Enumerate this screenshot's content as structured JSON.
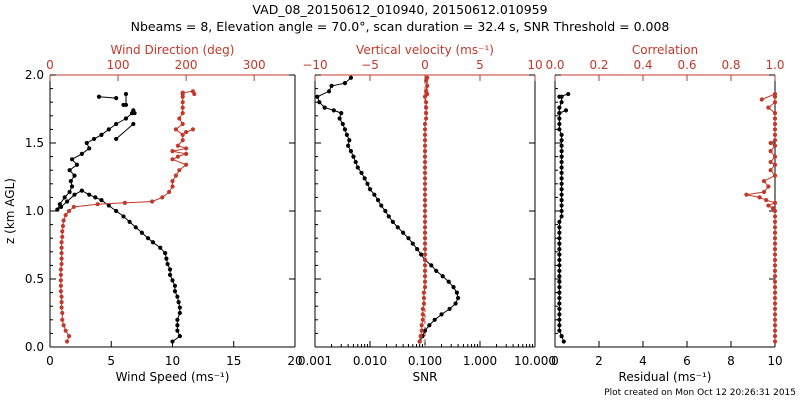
{
  "header": {
    "title": "VAD_08_20150612_010940, 20150612.010959",
    "subtitle": "Nbeams = 8, Elevation angle = 70.0°, scan duration = 32.4 s, SNR Threshold = 0.008"
  },
  "footer": {
    "note": "Plot created on Mon Oct 12 20:26:31 2015"
  },
  "chart_data": [
    {
      "type": "line",
      "panel": "left",
      "ylabel": "z (km AGL)",
      "ylim": [
        0.0,
        2.0
      ],
      "yticks": [
        "0.0",
        "0.5",
        "1.0",
        "1.5",
        "2.0"
      ],
      "bottom_axis": {
        "label": "Wind Speed (ms⁻¹)",
        "range": [
          0,
          20
        ],
        "ticks": [
          "0",
          "5",
          "10",
          "15",
          "20"
        ],
        "color": "#000000"
      },
      "top_axis": {
        "label": "Wind Direction (deg)",
        "range": [
          0,
          360
        ],
        "ticks": [
          "0",
          "100",
          "200",
          "300"
        ],
        "color": "#c0392b"
      },
      "series": [
        {
          "axis": "bottom",
          "color": "#000000",
          "x": [
            10.0,
            10.6,
            10.4,
            10.4,
            10.4,
            10.6,
            10.6,
            10.5,
            10.4,
            10.2,
            10.2,
            10.0,
            9.8,
            9.8,
            9.6,
            9.5,
            9.4,
            9.0,
            8.4,
            8.0,
            7.5,
            7.0,
            6.5,
            6.0,
            5.4,
            4.8,
            4.2,
            3.7,
            3.2,
            2.6,
            2.0,
            1.4,
            0.9,
            0.6,
            0.8,
            1.2,
            1.6,
            1.8,
            1.7,
            2.0,
            1.6,
            2.2,
            1.8,
            2.6,
            3.2,
            3.0,
            3.6,
            4.2,
            4.8,
            5.4,
            6.2,
            6.7,
            6.9,
            6.8,
            null,
            5.4,
            6.8,
            null,
            6.0,
            6.2,
            6.2,
            null,
            4.0,
            5.4
          ],
          "y": [
            0.04,
            0.08,
            0.12,
            0.16,
            0.2,
            0.25,
            0.29,
            0.33,
            0.37,
            0.41,
            0.45,
            0.49,
            0.53,
            0.57,
            0.61,
            0.65,
            0.69,
            0.73,
            0.77,
            0.8,
            0.84,
            0.88,
            0.92,
            0.96,
            1.0,
            1.04,
            1.08,
            1.1,
            1.12,
            1.15,
            1.12,
            1.07,
            1.03,
            1.01,
            1.05,
            1.1,
            1.14,
            1.18,
            1.22,
            1.26,
            1.3,
            1.34,
            1.38,
            1.42,
            1.46,
            1.5,
            1.53,
            1.56,
            1.6,
            1.64,
            1.68,
            1.72,
            1.72,
            1.74,
            null,
            1.53,
            1.64,
            null,
            1.78,
            1.78,
            1.86,
            null,
            1.84,
            1.83
          ]
        },
        {
          "axis": "top",
          "color": "#c0392b",
          "x": [
            25,
            28,
            23,
            20,
            18,
            18,
            17,
            17,
            17,
            16,
            16,
            16,
            16,
            16,
            17,
            17,
            17,
            17,
            17,
            18,
            18,
            19,
            20,
            23,
            28,
            35,
            70,
            110,
            150,
            165,
            175,
            180,
            180,
            185,
            190,
            200,
            180,
            188,
            200,
            180,
            200,
            188,
            195,
            195,
            185,
            195,
            190,
            195,
            195,
            195,
            195,
            195,
            195,
            210,
            212,
            null,
            200,
            210
          ],
          "y": [
            0.04,
            0.08,
            0.12,
            0.16,
            0.2,
            0.25,
            0.29,
            0.33,
            0.37,
            0.41,
            0.45,
            0.49,
            0.53,
            0.57,
            0.61,
            0.65,
            0.69,
            0.73,
            0.77,
            0.81,
            0.85,
            0.89,
            0.93,
            0.97,
            1.0,
            1.03,
            1.05,
            1.06,
            1.07,
            1.1,
            1.14,
            1.18,
            1.22,
            1.26,
            1.3,
            1.34,
            1.38,
            1.4,
            1.42,
            1.44,
            1.46,
            1.48,
            1.52,
            1.56,
            1.6,
            1.64,
            1.68,
            1.72,
            1.76,
            1.8,
            1.84,
            1.86,
            1.87,
            1.88,
            1.86,
            null,
            1.58,
            1.6
          ]
        }
      ]
    },
    {
      "type": "line",
      "panel": "middle",
      "bottom_axis": {
        "label": "SNR",
        "scale": "log",
        "range": [
          0.001,
          10
        ],
        "ticks": [
          "0.001",
          "0.010",
          "0.100",
          "1.000",
          "10.000"
        ],
        "color": "#000000"
      },
      "top_axis": {
        "label": "Vertical velocity (ms⁻¹)",
        "range": [
          -10,
          10
        ],
        "ticks": [
          "−10",
          "−5",
          "0",
          "5",
          "10"
        ],
        "color": "#c0392b",
        "zero_line": true
      },
      "ylim": [
        0.0,
        2.0
      ],
      "series": [
        {
          "axis": "bottom",
          "color": "#000000",
          "x": [
            0.08,
            0.09,
            0.1,
            0.12,
            0.15,
            0.2,
            0.28,
            0.36,
            0.4,
            0.38,
            0.33,
            0.27,
            0.21,
            0.16,
            0.13,
            0.1,
            0.085,
            0.072,
            0.06,
            0.05,
            0.04,
            0.032,
            0.026,
            0.022,
            0.019,
            0.016,
            0.014,
            0.012,
            0.01,
            0.009,
            0.008,
            0.007,
            0.006,
            0.0055,
            0.005,
            0.0045,
            0.004,
            0.0042,
            0.0038,
            0.0035,
            0.0032,
            0.0028,
            0.003,
            0.0022,
            0.0015,
            0.0012,
            0.0011,
            0.0018,
            0.002,
            0.0035,
            0.0045
          ],
          "y": [
            0.04,
            0.08,
            0.12,
            0.16,
            0.2,
            0.24,
            0.28,
            0.32,
            0.36,
            0.4,
            0.44,
            0.48,
            0.52,
            0.56,
            0.6,
            0.64,
            0.68,
            0.72,
            0.76,
            0.8,
            0.84,
            0.88,
            0.92,
            0.96,
            1.0,
            1.04,
            1.08,
            1.12,
            1.16,
            1.2,
            1.24,
            1.28,
            1.32,
            1.36,
            1.4,
            1.44,
            1.48,
            1.52,
            1.56,
            1.6,
            1.64,
            1.68,
            1.72,
            1.74,
            1.76,
            1.8,
            1.84,
            1.88,
            1.92,
            1.94,
            1.98
          ]
        },
        {
          "axis": "top",
          "color": "#c0392b",
          "x": [
            -0.5,
            -0.4,
            -0.3,
            -0.3,
            -0.2,
            -0.2,
            -0.2,
            -0.1,
            -0.1,
            -0.1,
            0,
            0,
            0,
            0,
            0,
            0,
            0,
            0,
            0,
            0,
            0,
            0,
            0,
            0,
            0,
            0,
            0,
            0,
            0,
            0,
            0,
            0,
            0,
            0,
            0,
            0,
            0,
            0,
            0,
            0,
            0,
            0.1,
            0.1,
            0.1,
            0.1,
            0,
            0.1,
            0.2,
            0.1,
            0.2,
            0.2
          ],
          "y": [
            0.04,
            0.08,
            0.12,
            0.16,
            0.2,
            0.24,
            0.28,
            0.32,
            0.36,
            0.4,
            0.44,
            0.48,
            0.52,
            0.56,
            0.6,
            0.64,
            0.68,
            0.72,
            0.76,
            0.8,
            0.84,
            0.88,
            0.92,
            0.96,
            1.0,
            1.04,
            1.08,
            1.12,
            1.16,
            1.2,
            1.24,
            1.28,
            1.32,
            1.36,
            1.4,
            1.44,
            1.48,
            1.52,
            1.56,
            1.6,
            1.64,
            1.68,
            1.72,
            1.76,
            1.8,
            1.84,
            1.88,
            1.92,
            1.96,
            1.98,
            1.86
          ]
        }
      ]
    },
    {
      "type": "line",
      "panel": "right",
      "bottom_axis": {
        "label": "Residual (ms⁻¹)",
        "range": [
          0,
          10
        ],
        "ticks": [
          "0",
          "2",
          "4",
          "6",
          "8",
          "10"
        ],
        "color": "#000000"
      },
      "top_axis": {
        "label": "Correlation",
        "range": [
          0.0,
          1.0
        ],
        "ticks": [
          "0.0",
          "0.2",
          "0.4",
          "0.6",
          "0.8",
          "1.0"
        ],
        "color": "#c0392b"
      },
      "ylim": [
        0.0,
        2.0
      ],
      "series": [
        {
          "axis": "bottom",
          "color": "#000000",
          "x": [
            0.4,
            0.3,
            0.2,
            0.2,
            0.2,
            0.2,
            0.2,
            0.2,
            0.2,
            0.2,
            0.2,
            0.2,
            0.2,
            0.2,
            0.2,
            0.2,
            0.2,
            0.2,
            0.2,
            0.2,
            0.2,
            0.2,
            0.2,
            0.3,
            0.3,
            0.3,
            0.3,
            0.3,
            0.3,
            0.3,
            0.3,
            0.3,
            0.3,
            0.3,
            0.3,
            0.3,
            0.3,
            0.3,
            0.3,
            0.2,
            0.2,
            0.2,
            0.2,
            0.2,
            0.3,
            0.3,
            null,
            0.5,
            0.2,
            null,
            0.6,
            0.2
          ],
          "y": [
            0.04,
            0.08,
            0.12,
            0.16,
            0.2,
            0.24,
            0.28,
            0.32,
            0.36,
            0.4,
            0.44,
            0.48,
            0.52,
            0.56,
            0.6,
            0.64,
            0.68,
            0.72,
            0.76,
            0.8,
            0.84,
            0.88,
            0.92,
            0.96,
            1.0,
            1.04,
            1.08,
            1.12,
            1.16,
            1.2,
            1.24,
            1.28,
            1.32,
            1.36,
            1.4,
            1.44,
            1.48,
            1.52,
            1.56,
            1.6,
            1.64,
            1.68,
            1.72,
            1.76,
            1.8,
            1.84,
            null,
            1.74,
            1.72,
            null,
            1.86,
            1.84
          ]
        },
        {
          "axis": "top",
          "color": "#c0392b",
          "x": [
            1.0,
            1.0,
            1.0,
            1.0,
            1.0,
            1.0,
            1.0,
            1.0,
            1.0,
            1.0,
            1.0,
            1.0,
            1.0,
            1.0,
            1.0,
            1.0,
            1.0,
            1.0,
            1.0,
            1.0,
            1.0,
            1.0,
            1.0,
            1.0,
            1.0,
            0.99,
            0.97,
            1.0,
            0.96,
            0.93,
            0.87,
            0.95,
            0.97,
            0.95,
            1.0,
            0.98,
            1.0,
            0.98,
            1.0,
            0.98,
            1.0,
            0.98,
            1.0,
            1.0,
            1.0,
            1.0,
            1.0,
            1.0,
            0.97,
            1.0,
            1.0,
            null,
            0.94,
            1.0
          ],
          "y": [
            0.04,
            0.08,
            0.12,
            0.16,
            0.2,
            0.24,
            0.28,
            0.32,
            0.36,
            0.4,
            0.44,
            0.48,
            0.52,
            0.56,
            0.6,
            0.64,
            0.68,
            0.72,
            0.76,
            0.8,
            0.84,
            0.88,
            0.92,
            0.96,
            1.0,
            1.02,
            1.04,
            1.06,
            1.08,
            1.1,
            1.12,
            1.14,
            1.18,
            1.22,
            1.26,
            1.3,
            1.34,
            1.36,
            1.4,
            1.44,
            1.48,
            1.5,
            1.52,
            1.56,
            1.6,
            1.64,
            1.68,
            1.72,
            1.76,
            1.8,
            1.84,
            null,
            1.82,
            1.86
          ]
        }
      ]
    }
  ]
}
